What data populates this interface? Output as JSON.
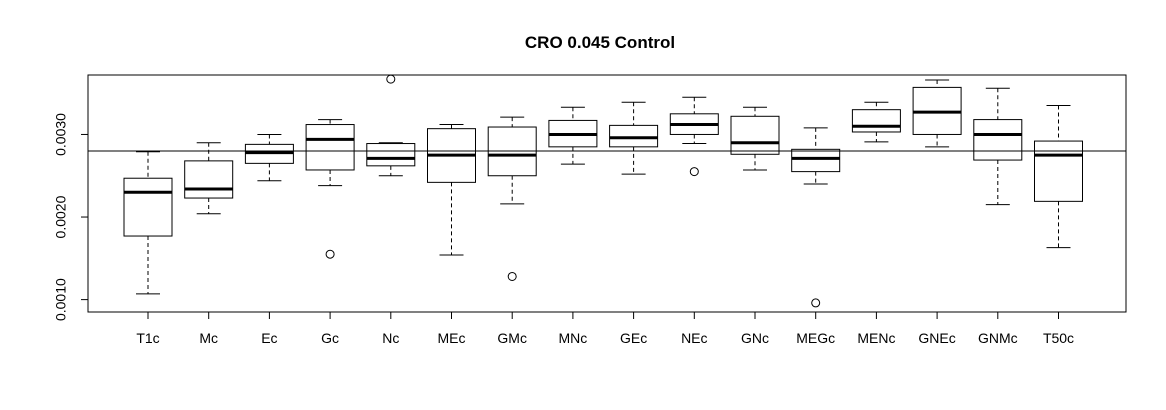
{
  "chart_data": {
    "type": "box",
    "title": "CRO 0.045 Control",
    "xlabel": "",
    "ylabel": "",
    "categories": [
      "T1c",
      "Mc",
      "Ec",
      "Gc",
      "Nc",
      "MEc",
      "GMc",
      "MNc",
      "GEc",
      "NEc",
      "GNc",
      "MEGc",
      "MENc",
      "GNEc",
      "GNMc",
      "T50c"
    ],
    "ylim": [
      0.00085,
      0.00372
    ],
    "yticks": [
      0.001,
      0.002,
      0.003
    ],
    "ytick_labels": [
      "0.0010",
      "0.0020",
      "0.0030"
    ],
    "reference_line": 0.0028,
    "boxes": [
      {
        "whisker_low": 0.00107,
        "q1": 0.00177,
        "median": 0.0023,
        "q3": 0.00247,
        "whisker_high": 0.00279,
        "outliers": []
      },
      {
        "whisker_low": 0.00204,
        "q1": 0.00223,
        "median": 0.00234,
        "q3": 0.00268,
        "whisker_high": 0.0029,
        "outliers": []
      },
      {
        "whisker_low": 0.00244,
        "q1": 0.00265,
        "median": 0.00278,
        "q3": 0.00288,
        "whisker_high": 0.003,
        "outliers": []
      },
      {
        "whisker_low": 0.00238,
        "q1": 0.00257,
        "median": 0.00294,
        "q3": 0.00312,
        "whisker_high": 0.00318,
        "outliers": [
          0.00155
        ]
      },
      {
        "whisker_low": 0.0025,
        "q1": 0.00262,
        "median": 0.00271,
        "q3": 0.00289,
        "whisker_high": 0.0029,
        "outliers": [
          0.00367
        ]
      },
      {
        "whisker_low": 0.00154,
        "q1": 0.00242,
        "median": 0.00275,
        "q3": 0.00307,
        "whisker_high": 0.00312,
        "outliers": []
      },
      {
        "whisker_low": 0.00216,
        "q1": 0.0025,
        "median": 0.00275,
        "q3": 0.00309,
        "whisker_high": 0.00321,
        "outliers": [
          0.00128
        ]
      },
      {
        "whisker_low": 0.00264,
        "q1": 0.00285,
        "median": 0.003,
        "q3": 0.00317,
        "whisker_high": 0.00333,
        "outliers": []
      },
      {
        "whisker_low": 0.00252,
        "q1": 0.00285,
        "median": 0.00296,
        "q3": 0.00311,
        "whisker_high": 0.00339,
        "outliers": []
      },
      {
        "whisker_low": 0.00289,
        "q1": 0.003,
        "median": 0.00312,
        "q3": 0.00325,
        "whisker_high": 0.00345,
        "outliers": [
          0.00255
        ]
      },
      {
        "whisker_low": 0.00257,
        "q1": 0.00276,
        "median": 0.0029,
        "q3": 0.00322,
        "whisker_high": 0.00333,
        "outliers": []
      },
      {
        "whisker_low": 0.0024,
        "q1": 0.00255,
        "median": 0.00271,
        "q3": 0.00282,
        "whisker_high": 0.00308,
        "outliers": [
          0.00096
        ]
      },
      {
        "whisker_low": 0.00291,
        "q1": 0.00303,
        "median": 0.0031,
        "q3": 0.0033,
        "whisker_high": 0.00339,
        "outliers": []
      },
      {
        "whisker_low": 0.00285,
        "q1": 0.003,
        "median": 0.00327,
        "q3": 0.00357,
        "whisker_high": 0.00366,
        "outliers": []
      },
      {
        "whisker_low": 0.00215,
        "q1": 0.00269,
        "median": 0.003,
        "q3": 0.00318,
        "whisker_high": 0.00356,
        "outliers": []
      },
      {
        "whisker_low": 0.00163,
        "q1": 0.00219,
        "median": 0.00275,
        "q3": 0.00292,
        "whisker_high": 0.00335,
        "outliers": []
      }
    ],
    "grid": false,
    "legend": "none"
  }
}
